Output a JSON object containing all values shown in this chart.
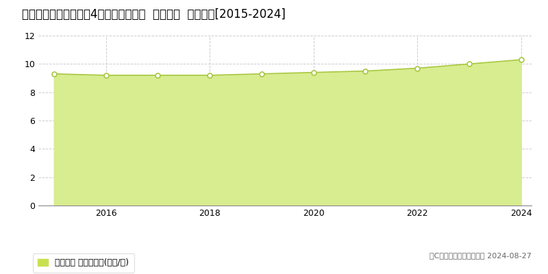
{
  "title": "新潟県新潟市北区嘉山4丁目７番１５外  地価公示  地価推移[2015-2024]",
  "years": [
    2015,
    2016,
    2017,
    2018,
    2019,
    2020,
    2021,
    2022,
    2023,
    2024
  ],
  "values": [
    9.3,
    9.2,
    9.2,
    9.2,
    9.3,
    9.4,
    9.5,
    9.7,
    10.0,
    10.3
  ],
  "ylim": [
    0,
    12
  ],
  "yticks": [
    0,
    2,
    4,
    6,
    8,
    10,
    12
  ],
  "xticks": [
    2016,
    2018,
    2020,
    2022,
    2024
  ],
  "line_color": "#a8c840",
  "fill_color": "#d8ec90",
  "fill_alpha": 1.0,
  "marker_color": "#ffffff",
  "marker_edge_color": "#a8c840",
  "marker_size": 5,
  "grid_color": "#cccccc",
  "background_color": "#ffffff",
  "legend_label": "地価公示 平均嵪単価(万円/嵪)",
  "legend_color": "#c8e050",
  "copyright_text": "（C）土地価格ドットコム 2024-08-27",
  "title_fontsize": 12,
  "tick_fontsize": 9,
  "legend_fontsize": 9,
  "copyright_fontsize": 8
}
